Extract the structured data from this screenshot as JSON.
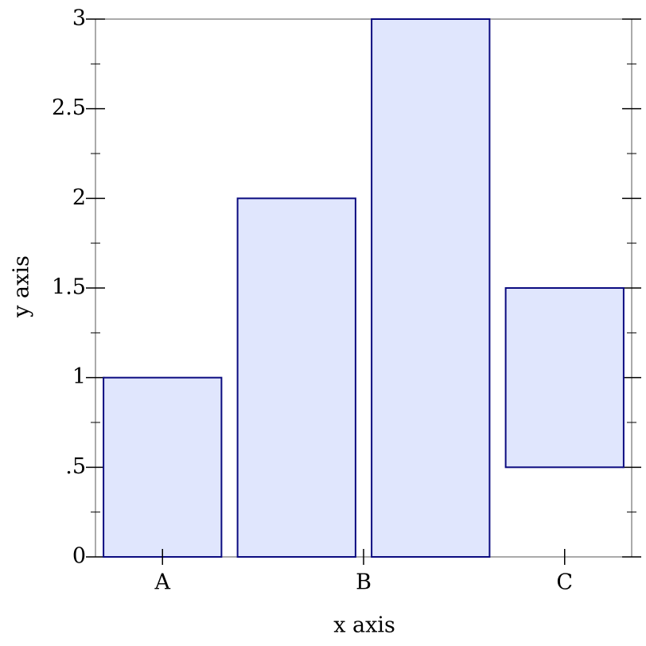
{
  "chart_data": {
    "type": "bar",
    "x_label": "x axis",
    "y_label": "y axis",
    "x": [
      0,
      1,
      2,
      3
    ],
    "values": [
      1,
      2,
      3,
      1.5
    ],
    "lows": [
      0,
      0,
      0,
      0.5
    ],
    "color": "#e0e6fd",
    "edge_color": "#0b0b80",
    "xlim": [
      -0.5,
      3.5
    ],
    "xticks": [
      {
        "value": 0,
        "label": "A"
      },
      {
        "value": 1.5,
        "label": "B"
      },
      {
        "value": 3,
        "label": "C"
      }
    ],
    "ylim": [
      0,
      3
    ],
    "yticks": [
      0,
      {
        "value": 0.5,
        "label": ".5"
      },
      1,
      1.5,
      2,
      2.5,
      3
    ]
  }
}
